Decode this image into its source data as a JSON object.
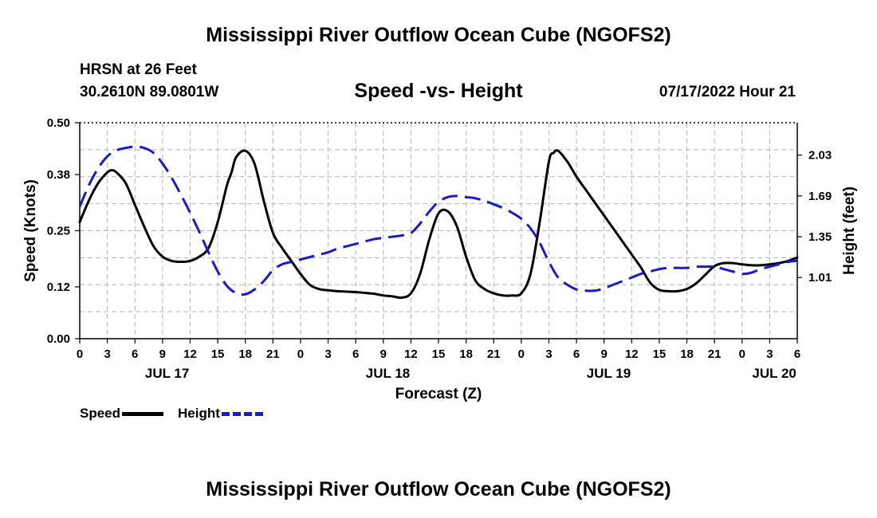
{
  "header": {
    "title": "Mississippi River Outflow Ocean Cube (NGOFS2)",
    "station": "HRSN at 26 Feet",
    "coordinates": "30.2610N  89.0801W",
    "subtitle": "Speed -vs- Height",
    "datetime": "07/17/2022 Hour 21"
  },
  "footer": {
    "title": "Mississippi River Outflow Ocean Cube (NGOFS2)"
  },
  "legend": {
    "speed_label": "Speed",
    "height_label": "Height",
    "speed_color": "#000000",
    "height_color": "#1a1ac8"
  },
  "chart_data": {
    "type": "line",
    "xlabel": "Forecast (Z)",
    "ylabel": "Speed (Knots)",
    "y2label": "Height (feet)",
    "xlim": [
      0,
      78
    ],
    "ylim": [
      0,
      0.5
    ],
    "y2lim": [
      0.5,
      2.3
    ],
    "grid": true,
    "x_tick_positions": [
      0,
      3,
      6,
      9,
      12,
      15,
      18,
      21,
      24,
      27,
      30,
      33,
      36,
      39,
      42,
      45,
      48,
      51,
      54,
      57,
      60,
      63,
      66,
      69,
      72,
      75,
      78
    ],
    "x_tick_labels": [
      "0",
      "3",
      "6",
      "9",
      "12",
      "15",
      "18",
      "21",
      "0",
      "3",
      "6",
      "9",
      "12",
      "15",
      "18",
      "21",
      "0",
      "3",
      "6",
      "9",
      "12",
      "15",
      "18",
      "21",
      "0",
      "3",
      "6"
    ],
    "day_labels": [
      {
        "label": "JUL 17",
        "x": 9.5
      },
      {
        "label": "JUL 18",
        "x": 33.5
      },
      {
        "label": "JUL 19",
        "x": 57.5
      },
      {
        "label": "JUL 20",
        "x": 75.5
      }
    ],
    "y_ticks": [
      0,
      0.12,
      0.25,
      0.38,
      0.5
    ],
    "y_tick_labels": [
      "0.00",
      "0.12",
      "0.25",
      "0.38",
      "0.50"
    ],
    "y2_ticks": [
      1.01,
      1.35,
      1.69,
      2.03
    ],
    "y2_tick_labels": [
      "1.01",
      "1.35",
      "1.69",
      "2.03"
    ],
    "series": [
      {
        "name": "Speed",
        "axis": "left",
        "style": "solid",
        "color": "#000000",
        "x": [
          0,
          1,
          2,
          3,
          3.5,
          4,
          5,
          6,
          7,
          8,
          9,
          10,
          11,
          12,
          13,
          14,
          15,
          16,
          16.5,
          17,
          18,
          19,
          20,
          21,
          22,
          23,
          24,
          25,
          26,
          27,
          28,
          29,
          30,
          31,
          32,
          33,
          34,
          35,
          36,
          37,
          38,
          39,
          40,
          41,
          42,
          43,
          44,
          45,
          46,
          47,
          48,
          49,
          50,
          51,
          51.5,
          52,
          53,
          54,
          55,
          56,
          57,
          58,
          59,
          60,
          61,
          62,
          63,
          64,
          65,
          66,
          67,
          68,
          69,
          70,
          71,
          72,
          73,
          74,
          75,
          76,
          77,
          78
        ],
        "values": [
          0.27,
          0.32,
          0.36,
          0.385,
          0.39,
          0.385,
          0.36,
          0.31,
          0.26,
          0.215,
          0.19,
          0.18,
          0.178,
          0.18,
          0.19,
          0.21,
          0.27,
          0.355,
          0.385,
          0.42,
          0.435,
          0.405,
          0.32,
          0.245,
          0.21,
          0.18,
          0.15,
          0.125,
          0.115,
          0.112,
          0.11,
          0.109,
          0.108,
          0.106,
          0.104,
          0.1,
          0.098,
          0.095,
          0.105,
          0.15,
          0.23,
          0.29,
          0.295,
          0.26,
          0.19,
          0.135,
          0.115,
          0.105,
          0.1,
          0.1,
          0.105,
          0.15,
          0.27,
          0.41,
          0.43,
          0.435,
          0.41,
          0.375,
          0.345,
          0.315,
          0.285,
          0.255,
          0.225,
          0.195,
          0.165,
          0.13,
          0.113,
          0.11,
          0.11,
          0.115,
          0.128,
          0.148,
          0.168,
          0.175,
          0.175,
          0.172,
          0.17,
          0.17,
          0.172,
          0.175,
          0.18,
          0.188
        ]
      },
      {
        "name": "Height",
        "axis": "right",
        "style": "dashed",
        "color": "#1a1ac8",
        "x": [
          0,
          1,
          2,
          3,
          4,
          5,
          6,
          7,
          8,
          9,
          10,
          11,
          12,
          13,
          14,
          15,
          16,
          17,
          18,
          19,
          20,
          21,
          22,
          23,
          24,
          25,
          26,
          27,
          28,
          29,
          30,
          31,
          32,
          33,
          34,
          35,
          36,
          37,
          38,
          39,
          40,
          41,
          42,
          43,
          44,
          45,
          46,
          47,
          48,
          49,
          50,
          51,
          52,
          53,
          54,
          55,
          56,
          57,
          58,
          59,
          60,
          61,
          62,
          63,
          64,
          65,
          66,
          67,
          68,
          69,
          70,
          71,
          72,
          73,
          74,
          75,
          76,
          77,
          78
        ],
        "values": [
          1.6,
          1.78,
          1.92,
          2.02,
          2.07,
          2.09,
          2.1,
          2.09,
          2.05,
          1.96,
          1.84,
          1.7,
          1.55,
          1.39,
          1.22,
          1.06,
          0.94,
          0.88,
          0.87,
          0.91,
          0.98,
          1.07,
          1.12,
          1.14,
          1.16,
          1.18,
          1.2,
          1.22,
          1.25,
          1.27,
          1.29,
          1.31,
          1.33,
          1.34,
          1.35,
          1.36,
          1.38,
          1.46,
          1.56,
          1.64,
          1.68,
          1.69,
          1.68,
          1.67,
          1.65,
          1.62,
          1.59,
          1.55,
          1.5,
          1.42,
          1.3,
          1.14,
          1.01,
          0.95,
          0.91,
          0.9,
          0.9,
          0.92,
          0.95,
          0.98,
          1.01,
          1.04,
          1.06,
          1.08,
          1.09,
          1.09,
          1.09,
          1.1,
          1.1,
          1.1,
          1.08,
          1.06,
          1.04,
          1.05,
          1.08,
          1.1,
          1.12,
          1.14,
          1.15
        ]
      }
    ]
  }
}
